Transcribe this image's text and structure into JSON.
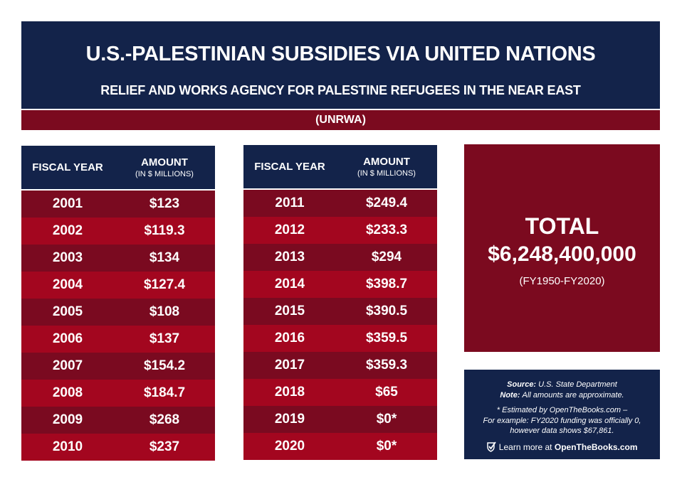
{
  "header": {
    "title": "U.S.-PALESTINIAN SUBSIDIES VIA UNITED NATIONS",
    "subtitle": "RELIEF AND WORKS AGENCY FOR PALESTINE REFUGEES IN THE NEAR EAST",
    "acronym": "(UNRWA)"
  },
  "colors": {
    "navy": "#13234a",
    "dark_red": "#7a0a20",
    "red": "#a3061f"
  },
  "chart_data": {
    "type": "table",
    "columns": [
      "FISCAL YEAR",
      "AMOUNT",
      "(IN $ MILLIONS)"
    ],
    "tables": [
      {
        "rows": [
          [
            "2001",
            "$123"
          ],
          [
            "2002",
            "$119.3"
          ],
          [
            "2003",
            "$134"
          ],
          [
            "2004",
            "$127.4"
          ],
          [
            "2005",
            "$108"
          ],
          [
            "2006",
            "$137"
          ],
          [
            "2007",
            "$154.2"
          ],
          [
            "2008",
            "$184.7"
          ],
          [
            "2009",
            "$268"
          ],
          [
            "2010",
            "$237"
          ]
        ]
      },
      {
        "rows": [
          [
            "2011",
            "$249.4"
          ],
          [
            "2012",
            "$233.3"
          ],
          [
            "2013",
            "$294"
          ],
          [
            "2014",
            "$398.7"
          ],
          [
            "2015",
            "$390.5"
          ],
          [
            "2016",
            "$359.5"
          ],
          [
            "2017",
            "$359.3"
          ],
          [
            "2018",
            "$65"
          ],
          [
            "2019",
            "$0*"
          ],
          [
            "2020",
            "$0*"
          ]
        ]
      }
    ]
  },
  "total": {
    "label": "TOTAL",
    "value": "$6,248,400,000",
    "range": "(FY1950-FY2020)"
  },
  "notes": {
    "source_label": "Source:",
    "source": "U.S. State Department",
    "note_label": "Note:",
    "note": "All amounts are approximate.",
    "estimate_1": "* Estimated by OpenTheBooks.com –",
    "estimate_2": "For example: FY2020 funding was officially 0,",
    "estimate_3": "however data shows $67,861.",
    "learn_more": "Learn more at",
    "site": "OpenTheBooks.com"
  }
}
